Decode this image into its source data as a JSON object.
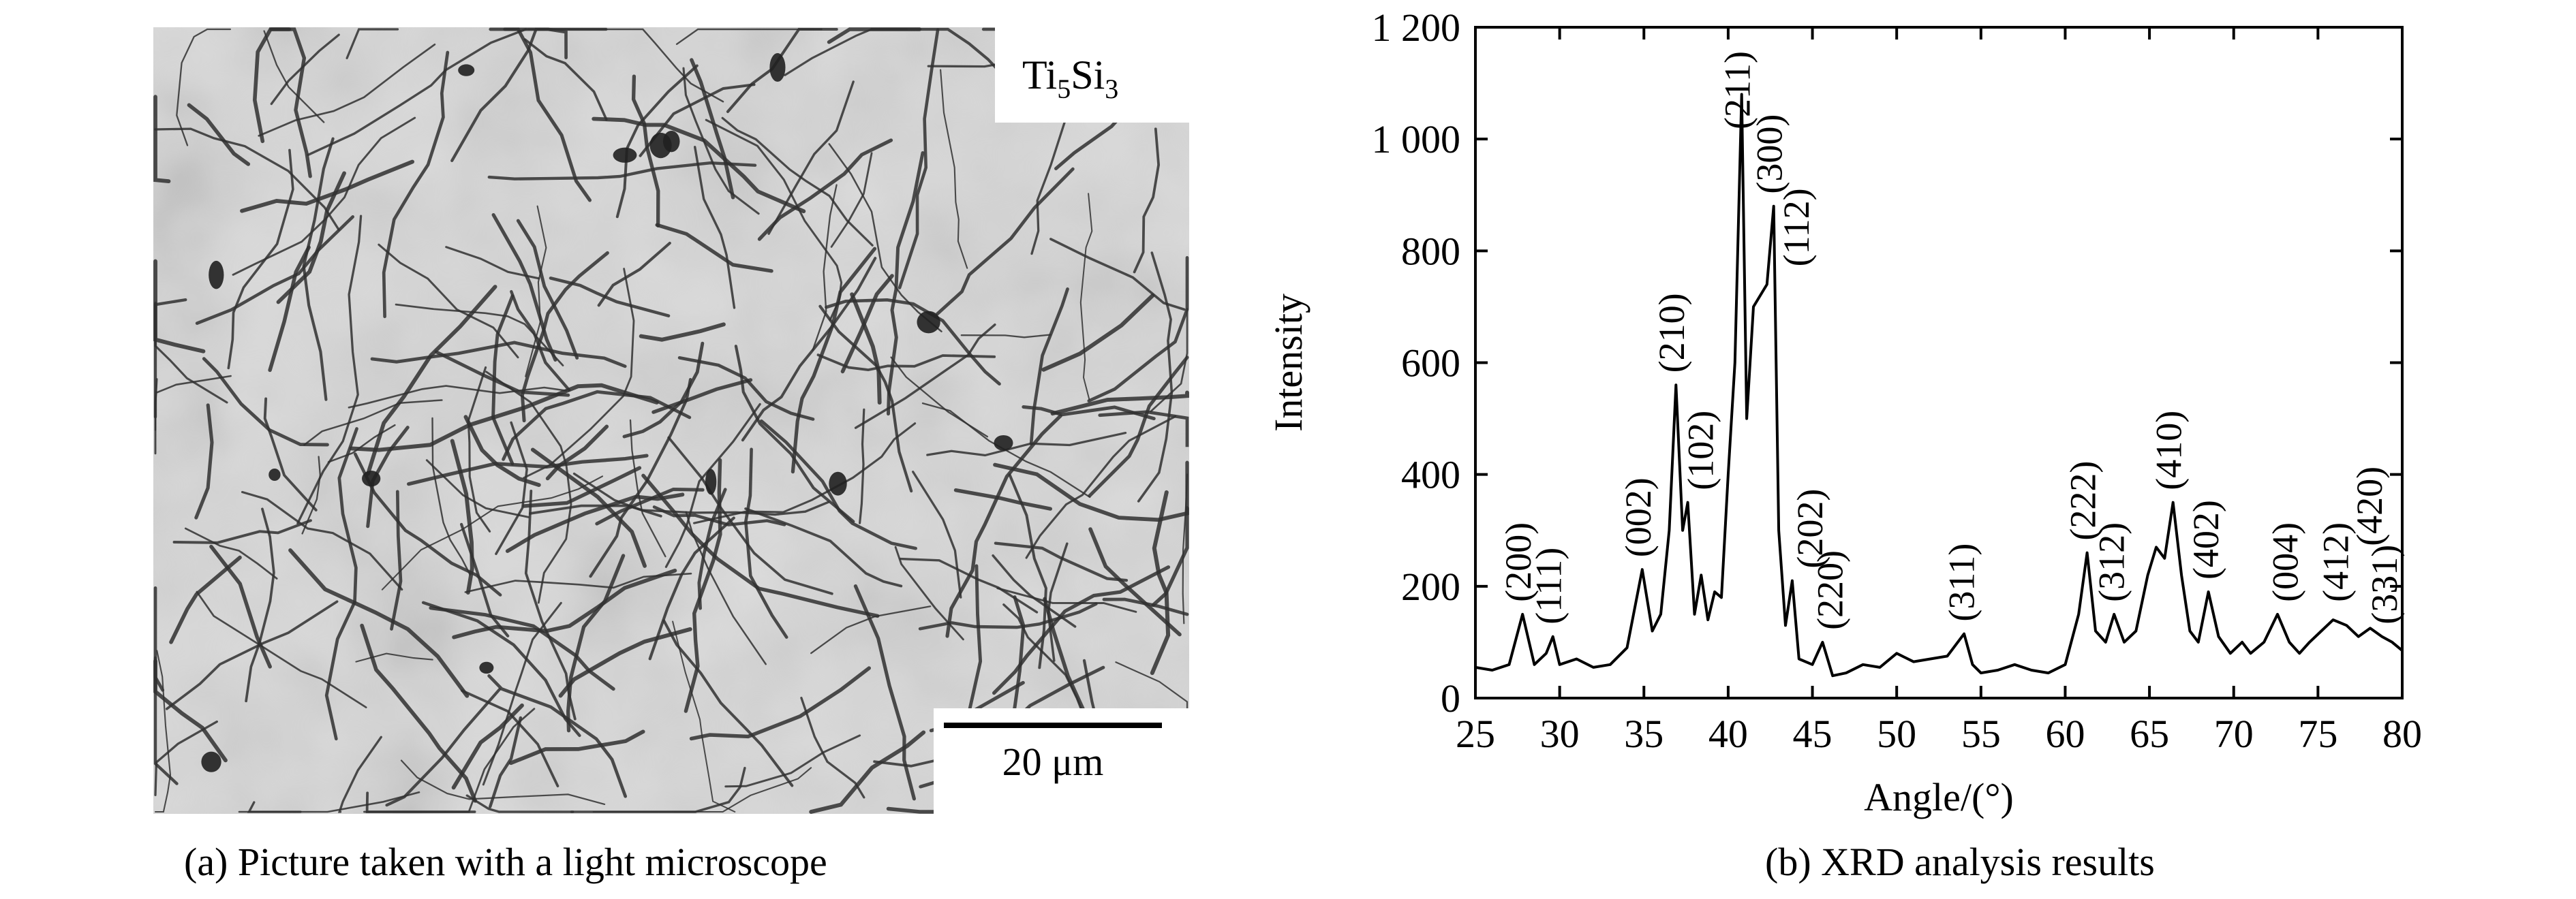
{
  "panel_a": {
    "caption": "(a) Picture taken with a light microscope",
    "phase_label": {
      "base": "Ti",
      "sub1": "5",
      "mid": "Si",
      "sub2": "3"
    },
    "scale_bar_label": "20 μm"
  },
  "panel_b": {
    "caption": "(b) XRD analysis results"
  },
  "chart_data": {
    "type": "line",
    "xlabel": "Angle/(°)",
    "ylabel": "Intensity",
    "xlim": [
      25,
      80
    ],
    "ylim": [
      0,
      1200
    ],
    "x_ticks": [
      25,
      30,
      35,
      40,
      45,
      50,
      55,
      60,
      65,
      70,
      75,
      80
    ],
    "y_ticks": [
      0,
      200,
      400,
      600,
      800,
      1000,
      1200
    ],
    "y_tick_labels": [
      "0",
      "200",
      "400",
      "600",
      "800",
      "1 000",
      "1 200"
    ],
    "grid": false,
    "series": [
      {
        "x": [
          25,
          26,
          27,
          27.8,
          28.5,
          29.2,
          29.6,
          30,
          31,
          32,
          33,
          34,
          34.9,
          35.5,
          36,
          36.5,
          36.9,
          37.3,
          37.6,
          38,
          38.4,
          38.8,
          39.2,
          39.6,
          40,
          40.4,
          40.8,
          41.1,
          41.5,
          41.9,
          42.3,
          42.7,
          43,
          43.4,
          43.8,
          44.2,
          45,
          45.6,
          46.2,
          47,
          48,
          49,
          50,
          51,
          52,
          53,
          54,
          54.5,
          55,
          56,
          57,
          58,
          59,
          60,
          60.8,
          61.3,
          61.8,
          62.4,
          62.9,
          63.5,
          64.2,
          64.9,
          65.4,
          65.9,
          66.4,
          66.9,
          67.4,
          67.9,
          68.5,
          69.1,
          69.8,
          70.5,
          71,
          71.8,
          72.6,
          73.3,
          73.9,
          74.5,
          75.2,
          75.9,
          76.7,
          77.4,
          78.1,
          78.8,
          79.4,
          80
        ],
        "y": [
          55,
          50,
          60,
          150,
          60,
          80,
          110,
          60,
          70,
          55,
          60,
          90,
          230,
          120,
          150,
          300,
          560,
          300,
          350,
          150,
          220,
          140,
          190,
          180,
          400,
          600,
          1080,
          500,
          700,
          720,
          740,
          880,
          300,
          130,
          210,
          70,
          60,
          100,
          40,
          45,
          60,
          55,
          80,
          65,
          70,
          75,
          115,
          60,
          45,
          50,
          60,
          50,
          45,
          60,
          150,
          260,
          120,
          100,
          150,
          100,
          120,
          220,
          270,
          250,
          350,
          220,
          120,
          100,
          190,
          110,
          80,
          100,
          80,
          100,
          150,
          100,
          80,
          100,
          120,
          140,
          130,
          110,
          125,
          110,
          100,
          85
        ]
      }
    ],
    "annotations": [
      {
        "text": "(200)",
        "x": 27.8,
        "y": 150
      },
      {
        "text": "(111)",
        "x": 29.6,
        "y": 110
      },
      {
        "text": "(002)",
        "x": 34.9,
        "y": 230
      },
      {
        "text": "(210)",
        "x": 36.9,
        "y": 560
      },
      {
        "text": "(102)",
        "x": 38.6,
        "y": 350
      },
      {
        "text": "(211)",
        "x": 40.8,
        "y": 1080
      },
      {
        "text": "(300)",
        "x": 42.7,
        "y": 880
      },
      {
        "text": "(112)",
        "x": 44.3,
        "y": 750
      },
      {
        "text": "(202)",
        "x": 45.1,
        "y": 210
      },
      {
        "text": "(220)",
        "x": 46.3,
        "y": 100
      },
      {
        "text": "(311)",
        "x": 54.1,
        "y": 115
      },
      {
        "text": "(222)",
        "x": 61.3,
        "y": 260
      },
      {
        "text": "(312)",
        "x": 63.0,
        "y": 150
      },
      {
        "text": "(410)",
        "x": 66.4,
        "y": 350
      },
      {
        "text": "(402)",
        "x": 68.6,
        "y": 190
      },
      {
        "text": "(004)",
        "x": 73.3,
        "y": 150
      },
      {
        "text": "(412)",
        "x": 76.3,
        "y": 150
      },
      {
        "text": "(420)",
        "x": 78.3,
        "y": 250
      },
      {
        "text": "(331)",
        "x": 79.2,
        "y": 110
      }
    ]
  }
}
